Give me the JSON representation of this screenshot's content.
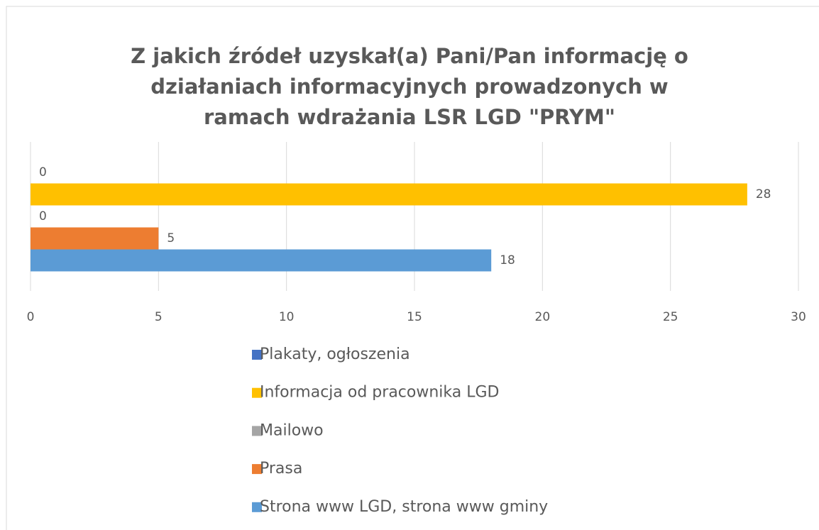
{
  "chart_data": {
    "type": "bar",
    "orientation": "horizontal",
    "title": "Z jakich źródeł uzyskał(a) Pani/Pan informację o działaniach informacyjnych prowadzonych w ramach wdrażania LSR LGD \"PRYM\"",
    "categories": [
      null
    ],
    "series": [
      {
        "name": "Plakaty, ogłoszenia",
        "color": "#4472c4",
        "values": [
          0
        ]
      },
      {
        "name": "Informacja od pracownika LGD",
        "color": "#ffc000",
        "values": [
          28
        ]
      },
      {
        "name": "Mailowo",
        "color": "#a5a5a5",
        "values": [
          0
        ]
      },
      {
        "name": "Prasa",
        "color": "#ed7d31",
        "values": [
          5
        ]
      },
      {
        "name": "Strona www LGD, strona www gminy",
        "color": "#5b9bd5",
        "values": [
          18
        ]
      }
    ],
    "xlim": [
      0,
      30
    ],
    "xticks": [
      0,
      5,
      10,
      15,
      20,
      25,
      30
    ],
    "grid": true,
    "legend": "bottom"
  }
}
